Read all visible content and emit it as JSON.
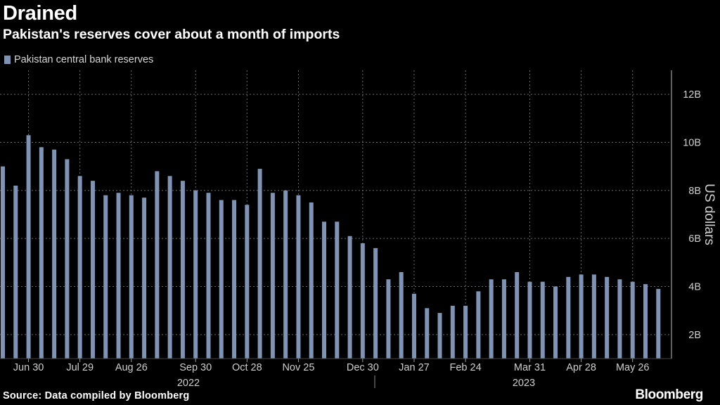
{
  "title": "Drained",
  "subtitle": "Pakistan's reserves cover about a month of imports",
  "legend_label": "Pakistan central bank reserves",
  "source": "Source: Data compiled by Bloomberg",
  "brand": "Bloomberg",
  "colors": {
    "bar": "#7f93b4",
    "background": "#000000",
    "grid": "#6a6a6a",
    "text": "#ffffff",
    "muted": "#cfcfcf"
  },
  "chart_data": {
    "type": "bar",
    "title": "Drained",
    "subtitle": "Pakistan's reserves cover about a month of imports",
    "ylabel": "US dollars",
    "ylim": [
      1,
      13
    ],
    "yticks": [
      2,
      4,
      6,
      8,
      10,
      12
    ],
    "ytick_labels": [
      "2B",
      "4B",
      "6B",
      "8B",
      "10B",
      "12B"
    ],
    "series": [
      {
        "name": "Pakistan central bank reserves",
        "unit": "billion USD",
        "values": [
          9.0,
          8.2,
          10.3,
          9.8,
          9.7,
          9.3,
          8.6,
          8.4,
          7.8,
          7.9,
          7.8,
          7.7,
          8.8,
          8.6,
          8.4,
          8.0,
          7.9,
          7.6,
          7.6,
          7.4,
          8.9,
          7.9,
          8.0,
          7.8,
          7.5,
          6.7,
          6.7,
          6.1,
          5.8,
          5.6,
          4.3,
          4.6,
          3.7,
          3.1,
          2.9,
          3.2,
          3.2,
          3.8,
          4.3,
          4.3,
          4.6,
          4.2,
          4.2,
          4.0,
          4.4,
          4.5,
          4.5,
          4.4,
          4.3,
          4.2,
          4.1,
          3.9
        ]
      }
    ],
    "x_ticks": [
      {
        "label": "Jun 30",
        "index": 2
      },
      {
        "label": "Jul 29",
        "index": 6
      },
      {
        "label": "Aug 26",
        "index": 10
      },
      {
        "label": "Sep 30",
        "index": 15
      },
      {
        "label": "Oct 28",
        "index": 19
      },
      {
        "label": "Nov 25",
        "index": 23
      },
      {
        "label": "Dec 30",
        "index": 28
      },
      {
        "label": "Jan 27",
        "index": 32
      },
      {
        "label": "Feb 24",
        "index": 36
      },
      {
        "label": "Mar 31",
        "index": 41
      },
      {
        "label": "Apr 28",
        "index": 45
      },
      {
        "label": "May 26",
        "index": 49
      }
    ],
    "years": [
      {
        "label": "2022",
        "from_index": 0,
        "to_index": 29
      },
      {
        "label": "2023",
        "from_index": 29,
        "to_index": 51
      }
    ]
  }
}
